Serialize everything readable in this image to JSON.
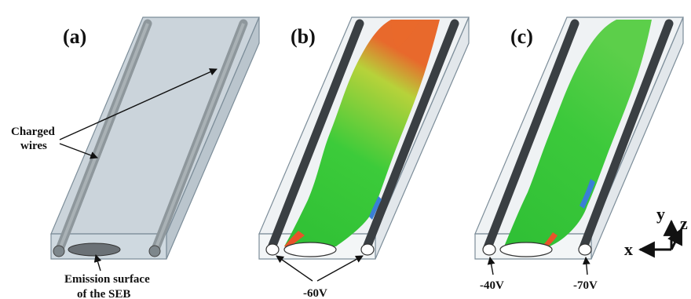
{
  "panels": [
    {
      "label": "(a)"
    },
    {
      "label": "(b)"
    },
    {
      "label": "(c)"
    }
  ],
  "annotations": {
    "charged_wires": [
      "Charged",
      "wires"
    ],
    "emission_surface": [
      "Emission surface",
      "of the SEB"
    ],
    "voltage_b": "-60V",
    "voltage_c_left": "-40V",
    "voltage_c_right": "-70V"
  },
  "axes": {
    "x": "x",
    "y": "y",
    "z": "z"
  },
  "colors": {
    "box_fill": "#b9c6cf",
    "box_edge": "#7c8d99",
    "wire_dark": "#3a3f43",
    "wire_light": "#8e979c",
    "plume_green": "#35c83a",
    "plume_red": "#e8542a",
    "plume_blue": "#3a7fd6"
  }
}
